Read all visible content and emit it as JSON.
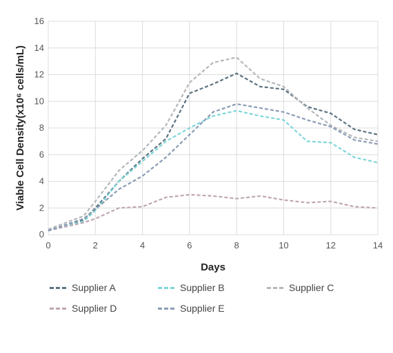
{
  "chart_data": {
    "type": "line",
    "xlabel": "Days",
    "ylabel": "Viable Cell Density(x10⁶ cells/mL)",
    "xlim": [
      0,
      14
    ],
    "ylim": [
      0,
      16
    ],
    "xticks": [
      0,
      2,
      4,
      6,
      8,
      10,
      12,
      14
    ],
    "yticks": [
      0,
      2,
      4,
      6,
      8,
      10,
      12,
      14,
      16
    ],
    "grid": true,
    "legend_position": "bottom",
    "series": [
      {
        "name": "Supplier A",
        "color": "#5a7280",
        "x": [
          0,
          1.5,
          2,
          3,
          4,
          5,
          6,
          7,
          8,
          9,
          10,
          11,
          12,
          13,
          14
        ],
        "y": [
          0.3,
          1.1,
          2.0,
          4.0,
          5.7,
          7.2,
          10.6,
          11.3,
          12.1,
          11.1,
          10.9,
          9.6,
          9.1,
          7.9,
          7.5
        ]
      },
      {
        "name": "Supplier B",
        "color": "#7ed6d8",
        "x": [
          0,
          1.5,
          2,
          3,
          4,
          5,
          6,
          7,
          8,
          9,
          10,
          11,
          12,
          13,
          14
        ],
        "y": [
          0.3,
          1.0,
          1.8,
          4.0,
          5.5,
          7.0,
          8.0,
          8.9,
          9.3,
          8.9,
          8.6,
          7.0,
          6.9,
          5.8,
          5.4
        ]
      },
      {
        "name": "Supplier C",
        "color": "#b3b7ba",
        "x": [
          0,
          1.5,
          2,
          3,
          4,
          5,
          6,
          7,
          8,
          9,
          10,
          11,
          12,
          13,
          14
        ],
        "y": [
          0.4,
          1.4,
          2.5,
          4.8,
          6.3,
          8.2,
          11.4,
          12.9,
          13.3,
          11.7,
          11.1,
          9.5,
          8.2,
          7.3,
          7.0
        ]
      },
      {
        "name": "Supplier D",
        "color": "#bfa6b2",
        "x": [
          0,
          1.5,
          2,
          3,
          4,
          5,
          6,
          7,
          8,
          9,
          10,
          11,
          12,
          13,
          14
        ],
        "y": [
          0.3,
          0.9,
          1.2,
          2.0,
          2.1,
          2.8,
          3.0,
          2.9,
          2.7,
          2.9,
          2.6,
          2.4,
          2.5,
          2.1,
          2.0
        ]
      },
      {
        "name": "Supplier E",
        "color": "#8a9bb5",
        "x": [
          0,
          1.5,
          2,
          3,
          4,
          5,
          6,
          7,
          8,
          9,
          10,
          11,
          12,
          13,
          14
        ],
        "y": [
          0.3,
          1.2,
          1.9,
          3.4,
          4.4,
          5.8,
          7.5,
          9.2,
          9.8,
          9.5,
          9.2,
          8.6,
          8.1,
          7.1,
          6.8
        ]
      }
    ]
  }
}
